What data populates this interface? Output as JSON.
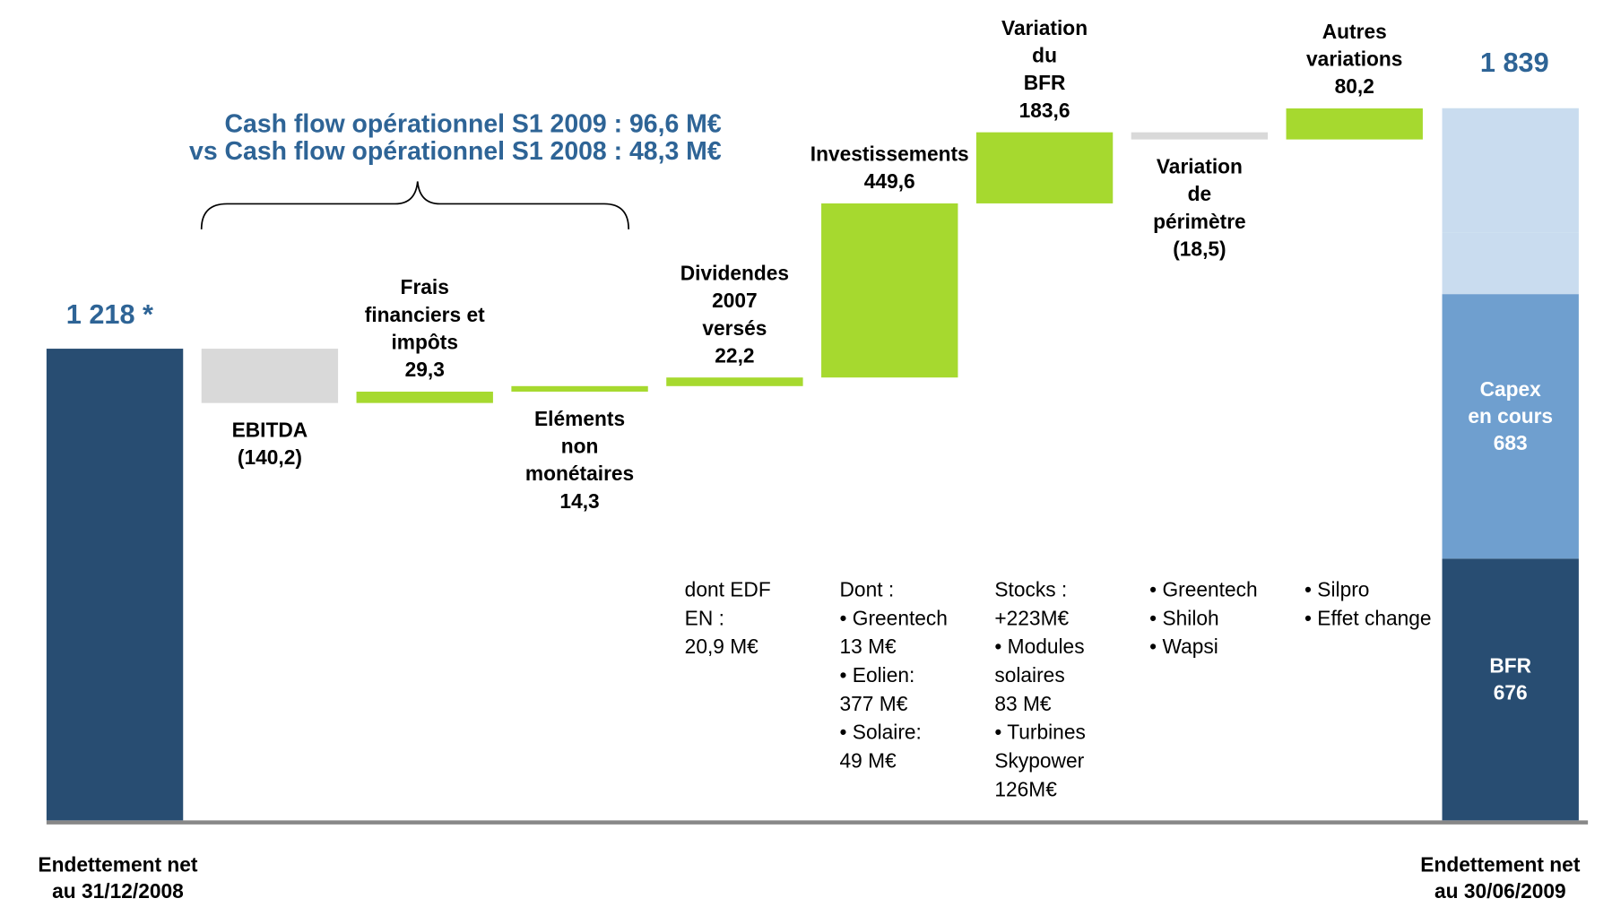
{
  "chart_data": {
    "type": "waterfall",
    "annotation": [
      "Cash flow opérationnel S1 2009 : 96,6 M€",
      "vs Cash flow opérationnel S1 2008 : 48,3 M€"
    ],
    "ylim": [
      0,
      2100
    ],
    "colors": {
      "increase": "#a6d92f",
      "decrease": "#d9d9d9"
    },
    "start": {
      "label": [
        "Endettement net",
        "au 31/12/2008"
      ],
      "value": 1218,
      "value_label": "1 218 *",
      "color": "#284d72"
    },
    "categories": [
      [
        "EBITDA"
      ],
      [
        "Frais",
        "financiers et",
        "impôts"
      ],
      [
        "Eléments",
        "non",
        "monétaires"
      ],
      [
        "Dividendes",
        "2007",
        "versés"
      ],
      [
        "Investissements"
      ],
      [
        "Variation",
        "du",
        "BFR"
      ],
      [
        "Variation",
        "de",
        "périmètre"
      ],
      [
        "Autres",
        "variations"
      ]
    ],
    "values": [
      -140.2,
      29.3,
      14.3,
      22.2,
      449.6,
      183.6,
      -18.5,
      80.2
    ],
    "value_labels": [
      "(140,2)",
      "29,3",
      "14,3",
      "22,2",
      "449,6",
      "183,6",
      "(18,5)",
      "80,2"
    ],
    "notes": [
      [],
      [],
      [],
      [
        "dont EDF",
        "EN :",
        "20,9 M€"
      ],
      [
        "Dont :",
        "• Greentech",
        "13 M€",
        "• Eolien:",
        "377 M€",
        "• Solaire:",
        "49 M€"
      ],
      [
        "Stocks :",
        "+223M€",
        "• Modules",
        "solaires",
        "83 M€",
        "• Turbines",
        "Skypower",
        "126M€"
      ],
      [
        "• Greentech",
        "• Shiloh",
        "• Wapsi"
      ],
      [
        "• Silpro",
        "• Effet change"
      ]
    ],
    "end": {
      "label": [
        "Endettement net",
        "au 30/06/2009"
      ],
      "value": 1839,
      "value_label": "1 839",
      "segments": [
        {
          "name": [
            "BFR"
          ],
          "value": 676,
          "color": "#284d72"
        },
        {
          "name": [
            "Capex",
            "en cours"
          ],
          "value": 683,
          "color": "#6f9fcf"
        },
        {
          "value": 158,
          "color": "#c9dcef"
        },
        {
          "value": 322,
          "color": "#c9dcef"
        }
      ]
    }
  }
}
